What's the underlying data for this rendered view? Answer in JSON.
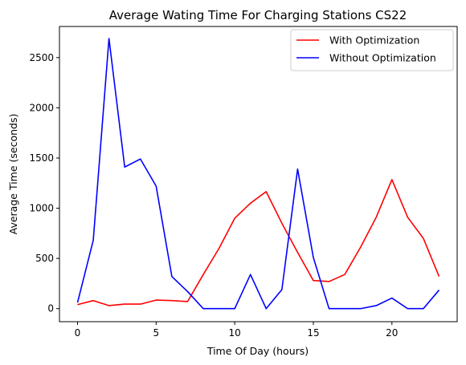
{
  "chart_data": {
    "type": "line",
    "title": "Average Wating Time For Charging Stations CS22",
    "xlabel": "Time Of Day (hours)",
    "ylabel": "Average Time (seconds)",
    "xlim": [
      -1.15,
      24.15
    ],
    "ylim": [
      -130,
      2810
    ],
    "xticks": [
      0,
      5,
      10,
      15,
      20
    ],
    "yticks": [
      0,
      500,
      1000,
      1500,
      2000,
      2500
    ],
    "grid": false,
    "legend_position": "top-right",
    "x": [
      0,
      1,
      2,
      3,
      4,
      5,
      6,
      7,
      8,
      9,
      10,
      11,
      12,
      13,
      14,
      15,
      16,
      17,
      18,
      19,
      20,
      21,
      22,
      23
    ],
    "series": [
      {
        "name": "With Optimization",
        "color": "#ff0000",
        "values": [
          40,
          80,
          30,
          45,
          45,
          85,
          80,
          70,
          340,
          600,
          900,
          1050,
          1165,
          850,
          560,
          280,
          270,
          340,
          610,
          910,
          1285,
          910,
          700,
          320
        ]
      },
      {
        "name": "Without Optimization",
        "color": "#0000ff",
        "values": [
          60,
          680,
          2690,
          1410,
          1490,
          1220,
          320,
          170,
          0,
          0,
          0,
          340,
          0,
          190,
          1390,
          510,
          0,
          0,
          0,
          30,
          105,
          0,
          0,
          185
        ]
      }
    ]
  }
}
